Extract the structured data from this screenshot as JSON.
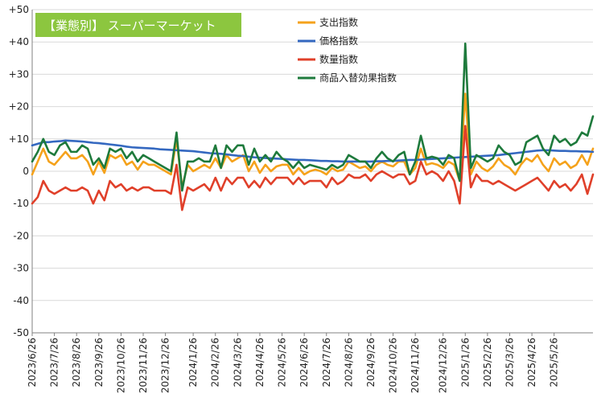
{
  "colors": {
    "spend": "#f5a21b",
    "price": "#3468c0",
    "quantity": "#e0402a",
    "substitution": "#1e7a3c",
    "title_box": "#8cc63f",
    "grid": "#d9d9d9",
    "axis": "#808080"
  },
  "chart_data": {
    "type": "line",
    "title": "【業態別】 スーパーマーケット",
    "xlabel": "",
    "ylabel": "",
    "ylim": [
      -50,
      50
    ],
    "yticks": [
      "-50",
      "-40",
      "-30",
      "-20",
      "-10",
      "0",
      "+10",
      "+20",
      "+30",
      "+40",
      "+50"
    ],
    "ytick_values": [
      -50,
      -40,
      -30,
      -20,
      -10,
      0,
      10,
      20,
      30,
      40,
      50
    ],
    "x_labels": [
      "2023/6/26",
      "2023/7/26",
      "2023/8/26",
      "2023/9/26",
      "2023/10/26",
      "2023/11/26",
      "2023/12/26",
      "2024/1/26",
      "2024/2/26",
      "2024/3/26",
      "2024/4/26",
      "2024/5/26",
      "2024/6/26",
      "2024/7/26",
      "2024/8/26",
      "2024/9/26",
      "2024/10/26",
      "2024/11/26",
      "2024/12/26",
      "2025/1/26",
      "2025/2/26",
      "2025/3/26",
      "2025/4/26",
      "2025/5/26"
    ],
    "x_label_index": [
      0,
      4,
      8,
      12,
      16,
      20,
      24,
      29,
      33,
      37,
      41,
      45,
      49,
      53,
      57,
      61,
      65,
      69,
      74,
      78,
      82,
      86,
      90,
      94
    ],
    "grid": true,
    "legend_position": "top-center",
    "series": [
      {
        "name": "支出指数",
        "color_key": "spend",
        "values": [
          -1,
          3,
          7,
          3,
          2,
          4,
          6,
          4,
          4,
          5,
          3,
          -1,
          3,
          -0.5,
          5,
          4,
          5,
          2,
          3,
          0.5,
          3,
          2,
          2,
          1,
          0,
          -1,
          10,
          -5,
          2,
          0,
          1,
          2,
          1,
          4,
          1,
          5,
          3,
          4,
          5,
          0,
          3,
          -0.5,
          2,
          0,
          1.5,
          2,
          2,
          -1,
          1,
          -1,
          0,
          0.5,
          0,
          -1,
          1,
          0,
          0.5,
          3,
          2,
          1,
          1.5,
          0,
          2,
          3,
          2,
          1.5,
          3,
          3,
          -1,
          1,
          7,
          2,
          2.5,
          2,
          1,
          3,
          2,
          -3,
          24,
          -1,
          3,
          1,
          0,
          1.5,
          4,
          2,
          1,
          -1,
          2,
          4,
          3,
          5,
          2,
          0,
          4,
          2,
          3,
          1,
          2,
          5,
          2,
          7
        ]
      },
      {
        "name": "価格指数",
        "color_key": "price",
        "values": [
          8,
          8.5,
          9,
          9,
          9.2,
          9.3,
          9.5,
          9.4,
          9.3,
          9.2,
          9,
          8.8,
          8.7,
          8.5,
          8.3,
          8.1,
          7.9,
          7.6,
          7.4,
          7.3,
          7.2,
          7.1,
          7,
          6.8,
          6.7,
          6.6,
          6.5,
          6.4,
          6.3,
          6.2,
          6,
          5.8,
          5.6,
          5.5,
          5.4,
          5.2,
          5,
          4.8,
          4.7,
          4.5,
          4.3,
          4.2,
          4.1,
          4,
          3.9,
          3.8,
          3.7,
          3.6,
          3.5,
          3.5,
          3.4,
          3.3,
          3.2,
          3.2,
          3.1,
          3.1,
          3,
          3,
          3,
          3,
          3,
          3,
          3.1,
          3.1,
          3.2,
          3.2,
          3.3,
          3.4,
          3.5,
          3.5,
          3.6,
          3.7,
          3.8,
          3.9,
          4,
          4.1,
          4.2,
          4.3,
          4.4,
          4.5,
          4.6,
          4.7,
          4.8,
          4.9,
          5,
          5.2,
          5.4,
          5.6,
          5.8,
          6,
          6.2,
          6.4,
          6.5,
          6.5,
          6.4,
          6.3,
          6.3,
          6.2,
          6.2,
          6.1,
          6.1,
          6
        ]
      },
      {
        "name": "数量指数",
        "color_key": "quantity",
        "values": [
          -10,
          -8,
          -3,
          -6,
          -7,
          -6,
          -5,
          -6,
          -6,
          -5,
          -6,
          -10,
          -6,
          -9,
          -3,
          -5,
          -4,
          -6,
          -5,
          -6,
          -5,
          -5,
          -6,
          -6,
          -6,
          -7,
          2,
          -12,
          -5,
          -6,
          -5,
          -4,
          -6,
          -2,
          -6,
          -2,
          -4,
          -2,
          -2,
          -5,
          -3,
          -5,
          -2,
          -4,
          -2,
          -2,
          -2,
          -4,
          -2,
          -4,
          -3,
          -3,
          -3,
          -5,
          -2,
          -4,
          -3,
          -1,
          -2,
          -2,
          -1,
          -3,
          -1,
          0,
          -1,
          -2,
          -1,
          -1,
          -4,
          -3,
          3,
          -1,
          0,
          -1,
          -3,
          0,
          -3,
          -10,
          14,
          -5,
          -1,
          -3,
          -3,
          -4,
          -3,
          -4,
          -5,
          -6,
          -5,
          -4,
          -3,
          -2,
          -4,
          -6,
          -3,
          -5,
          -4,
          -6,
          -4,
          -1,
          -7,
          -1
        ]
      },
      {
        "name": "商品入替効果指数",
        "color_key": "substitution",
        "values": [
          3,
          6,
          10,
          6,
          5,
          8,
          9,
          6,
          6,
          8,
          7,
          2,
          4,
          1,
          7,
          6,
          7,
          4,
          6,
          3,
          5,
          4,
          3,
          2,
          1,
          0,
          12,
          -6,
          3,
          3,
          4,
          3,
          3,
          8,
          1,
          8,
          6,
          8,
          8,
          2,
          7,
          3,
          5,
          3,
          6,
          4,
          3,
          1,
          3,
          1,
          2,
          1.5,
          1,
          0.5,
          2,
          1,
          2,
          5,
          4,
          3,
          3,
          1,
          4,
          6,
          4,
          3,
          5,
          6,
          -1,
          3,
          11,
          4,
          4.5,
          4,
          2,
          5,
          4,
          -3,
          39.5,
          1,
          5,
          4,
          3,
          4,
          8,
          6,
          5,
          2,
          3,
          9,
          10,
          11,
          7,
          5,
          11,
          9,
          10,
          8,
          9,
          12,
          11,
          17
        ]
      }
    ]
  }
}
